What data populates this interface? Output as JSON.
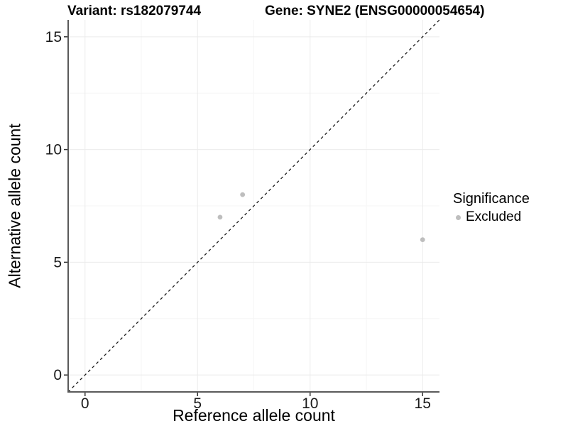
{
  "chart_data": {
    "type": "scatter",
    "title_left": "Variant: rs182079744",
    "title_right": "Gene: SYNE2 (ENSG00000054654)",
    "xlabel": "Reference allele count",
    "ylabel": "Alternative allele count",
    "xlim": [
      -0.75,
      15.75
    ],
    "ylim": [
      -0.75,
      15.75
    ],
    "x_ticks": [
      0,
      5,
      10,
      15
    ],
    "y_ticks": [
      0,
      5,
      10,
      15
    ],
    "x_minor_gridlines": [
      2.5,
      7.5,
      12.5
    ],
    "y_minor_gridlines": [
      2.5,
      7.5,
      12.5
    ],
    "grid": "major and minor light-gray gridlines on white panel",
    "identity_line": {
      "equation": "y = x",
      "style": "dashed",
      "color": "#1a1a1a"
    },
    "series": [
      {
        "name": "Excluded",
        "color": "#bebebe",
        "points": [
          {
            "x": 6,
            "y": 7
          },
          {
            "x": 7,
            "y": 8
          },
          {
            "x": 15,
            "y": 6
          }
        ]
      }
    ],
    "legend": {
      "title": "Significance",
      "position": "right",
      "entries": [
        {
          "label": "Excluded",
          "color": "#bebebe"
        }
      ]
    }
  },
  "colors": {
    "background": "#ffffff",
    "grid_major": "#ebebeb",
    "grid_minor": "#f5f5f5",
    "axis_line": "#5a5a5a",
    "tick_mark": "#333333",
    "tick_label": "#1a1a1a",
    "point": "#bebebe"
  }
}
